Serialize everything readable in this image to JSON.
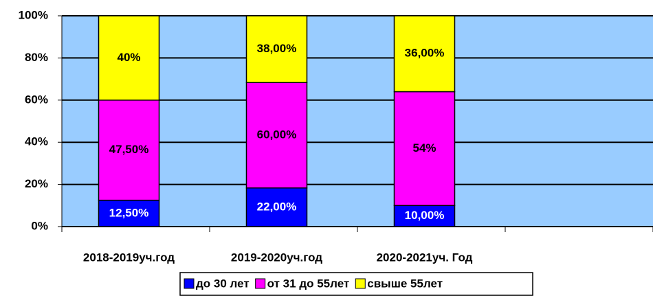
{
  "chart_data": {
    "type": "bar",
    "stacking": "percent",
    "categories": [
      "2018-2019уч.год",
      "2019-2020уч.год",
      "2020-2021уч. Год",
      null
    ],
    "series": [
      {
        "name": "до 30 лет",
        "color": "#0000ff",
        "label_color": "#ffffff",
        "values": [
          12.5,
          22,
          10,
          null
        ],
        "value_labels": [
          "12,50%",
          "22,00%",
          "10,00%",
          null
        ]
      },
      {
        "name": "от 31 до 55лет",
        "color": "#ff00ff",
        "label_color": "#000000",
        "values": [
          47.5,
          60,
          54,
          null
        ],
        "value_labels": [
          "47,50%",
          "60,00%",
          "54%",
          null
        ]
      },
      {
        "name": "свыше 55лет",
        "color": "#ffff00",
        "label_color": "#000000",
        "values": [
          40,
          38,
          36,
          null
        ],
        "value_labels": [
          "40%",
          "38,00%",
          "36,00%",
          null
        ]
      }
    ],
    "ylim": [
      0,
      100
    ],
    "yticks": [
      {
        "value": 0,
        "label": "0%"
      },
      {
        "value": 20,
        "label": "20%"
      },
      {
        "value": 40,
        "label": "40%"
      },
      {
        "value": 60,
        "label": "60%"
      },
      {
        "value": 80,
        "label": "80%"
      },
      {
        "value": 100,
        "label": "100%"
      }
    ],
    "grid": true,
    "plot_background": "#99ccff",
    "legend": "bottom"
  }
}
